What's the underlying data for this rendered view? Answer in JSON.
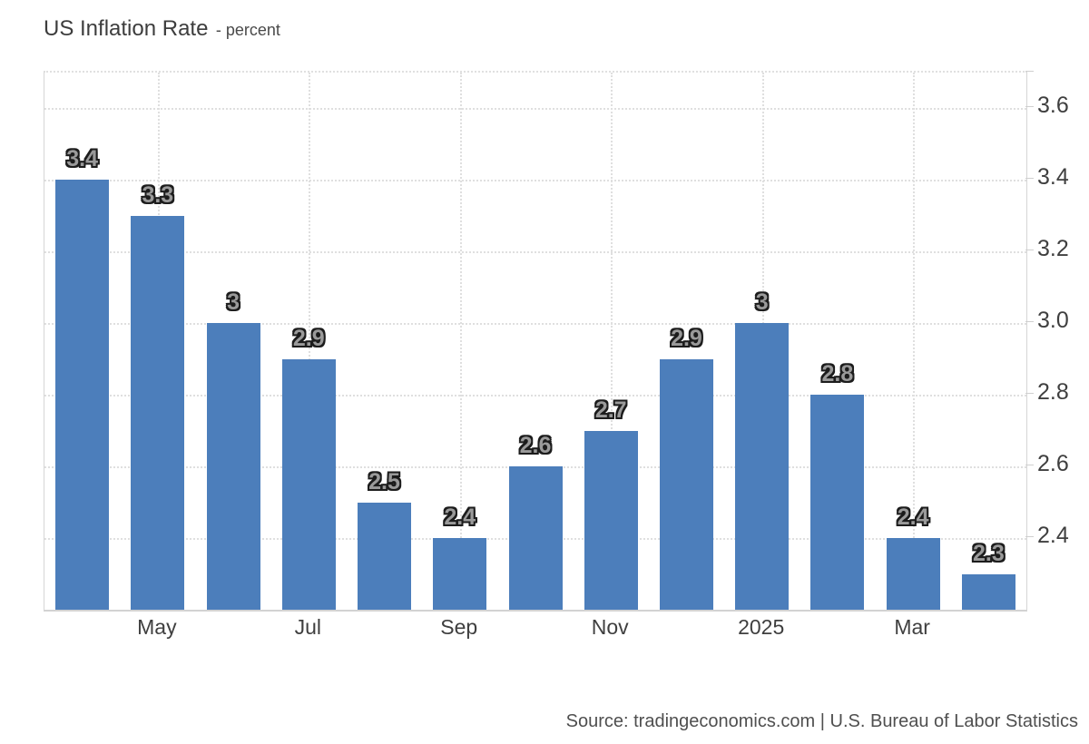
{
  "title": {
    "main": "US Inflation Rate",
    "subtitle": "- percent"
  },
  "source": {
    "text": "Source: tradingeconomics.com | U.S. Bureau of Labor Statistics"
  },
  "colors": {
    "bar": "#4c7ebb",
    "grid": "#dfdfdf",
    "label_fill": "#9a9a9a",
    "label_outline": "#1c1c1c",
    "axis_text": "#3f3f3f"
  },
  "chart_data": {
    "type": "bar",
    "title": "US Inflation Rate",
    "subtitle": "- percent",
    "ylabel": "percent",
    "values": [
      3.4,
      3.3,
      3.0,
      2.9,
      2.5,
      2.4,
      2.6,
      2.7,
      2.9,
      3.0,
      2.8,
      2.4,
      2.3
    ],
    "bar_labels": [
      "3.4",
      "3.3",
      "3",
      "2.9",
      "2.5",
      "2.4",
      "2.6",
      "2.7",
      "2.9",
      "3",
      "2.8",
      "2.4",
      "2.3"
    ],
    "x_ticks": [
      {
        "bar_index": 1,
        "label": "May"
      },
      {
        "bar_index": 3,
        "label": "Jul"
      },
      {
        "bar_index": 5,
        "label": "Sep"
      },
      {
        "bar_index": 7,
        "label": "Nov"
      },
      {
        "bar_index": 9,
        "label": "2025"
      },
      {
        "bar_index": 11,
        "label": "Mar"
      }
    ],
    "y_ticks": [
      2.4,
      2.6,
      2.8,
      3.0,
      3.2,
      3.4,
      3.6
    ],
    "y_tick_labels": [
      "2.4",
      "2.6",
      "2.8",
      "3.0",
      "3.2",
      "3.4",
      "3.6"
    ],
    "ylim": [
      2.2,
      3.7
    ],
    "grid": "dotted",
    "legend": "none",
    "y_axis_side": "right"
  }
}
